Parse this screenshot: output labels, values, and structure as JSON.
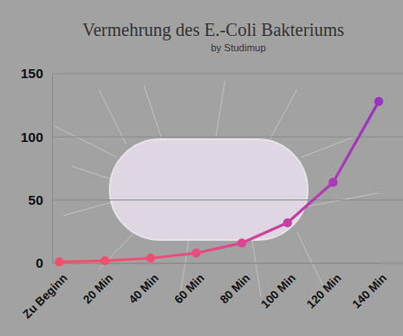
{
  "chart_data": {
    "type": "line",
    "title": "Vermehrung des E.-Coli Bakteriums",
    "subtitle": "by Studimup",
    "categories": [
      "Zu Beginn",
      "20 Min",
      "40 Min",
      "60 Min",
      "80 Min",
      "100 Min",
      "120 Min",
      "140 Min"
    ],
    "values": [
      1,
      2,
      4,
      8,
      16,
      32,
      64,
      128
    ],
    "colors": [
      "#f2506a",
      "#f2506a",
      "#f04f72",
      "#e84c80",
      "#d84592",
      "#c43ea6",
      "#ad37b6",
      "#9b31c0"
    ],
    "marker": "circle",
    "ylim": [
      0,
      150
    ],
    "yticks": [
      0,
      50,
      100,
      150
    ],
    "grid": true
  }
}
